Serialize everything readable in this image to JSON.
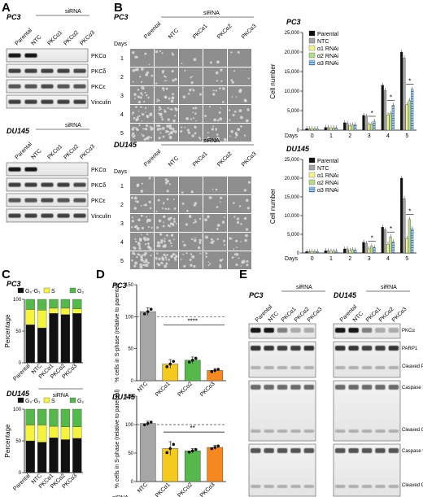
{
  "panel_labels": {
    "A": "A",
    "B": "B",
    "C": "C",
    "D": "D",
    "E": "E"
  },
  "cell_lines": {
    "pc3": "PC3",
    "du145": "DU145"
  },
  "sirna_label": "siRNA",
  "lanes_full": [
    "Parental",
    "NTC",
    "PKCα1",
    "PKCα2",
    "PKCα3"
  ],
  "lanes_b": [
    "Parental",
    "NTC",
    "PKCα1",
    "PKCα2",
    "PKCα3"
  ],
  "blot_labels_a": [
    "PKCα",
    "PKCδ",
    "PKCε",
    "Vinculin"
  ],
  "panel_b": {
    "days_label": "Days",
    "day_rows": [
      "1",
      "2",
      "3",
      "4",
      "5"
    ]
  },
  "panel_e": {
    "labels": [
      "PKCα",
      "PARP1",
      "Cleaved PARP1",
      "Caspase 3",
      "Cleaved Caspase 3",
      "Caspase 9",
      "Cleaved Caspase 9",
      "Vinculin"
    ]
  },
  "chart_data": [
    {
      "id": "B-PC3",
      "type": "bar",
      "title": "PC3",
      "xlabel": "Days",
      "ylabel": "Cell number",
      "categories": [
        "0",
        "1",
        "2",
        "3",
        "4",
        "5"
      ],
      "ylim": [
        0,
        25000
      ],
      "yticks": [
        "0",
        "5,000",
        "10,000",
        "15,000",
        "20,000",
        "25,000"
      ],
      "series": [
        {
          "name": "Parental",
          "color": "#111111",
          "values": [
            400,
            700,
            1900,
            3800,
            11500,
            20000
          ]
        },
        {
          "name": "NTC",
          "color": "#a6a6a6",
          "values": [
            400,
            700,
            1800,
            3600,
            10200,
            18500
          ]
        },
        {
          "name": "α1 RNAi",
          "color": "#f4f48c",
          "values": [
            400,
            600,
            1200,
            1500,
            3900,
            6500
          ]
        },
        {
          "name": "α2 RNAi",
          "color": "#b6de8a",
          "values": [
            400,
            600,
            1300,
            1600,
            4300,
            7600
          ]
        },
        {
          "name": "α3 RNAi",
          "color": "#9cc8ee",
          "values": [
            400,
            600,
            1400,
            2300,
            6400,
            10500
          ]
        }
      ],
      "significance": [
        {
          "day": "3",
          "mark": "*"
        },
        {
          "day": "4",
          "mark": "*"
        },
        {
          "day": "5",
          "mark": "*"
        }
      ],
      "legend": "top-right"
    },
    {
      "id": "B-DU145",
      "type": "bar",
      "title": "DU145",
      "xlabel": "Days",
      "ylabel": "Cell number",
      "categories": [
        "0",
        "1",
        "2",
        "3",
        "4",
        "5"
      ],
      "ylim": [
        0,
        25000
      ],
      "yticks": [
        "0",
        "5,000",
        "10,000",
        "15,000",
        "20,000",
        "25,000"
      ],
      "series": [
        {
          "name": "Parental",
          "color": "#111111",
          "values": [
            400,
            600,
            1100,
            2900,
            6900,
            20000
          ]
        },
        {
          "name": "NTC",
          "color": "#a6a6a6",
          "values": [
            400,
            600,
            1100,
            2600,
            6200,
            14500
          ]
        },
        {
          "name": "α1 RNAi",
          "color": "#f4f48c",
          "values": [
            400,
            500,
            700,
            1100,
            2300,
            3900
          ]
        },
        {
          "name": "α2 RNAi",
          "color": "#b6de8a",
          "values": [
            400,
            500,
            900,
            1800,
            4300,
            9000
          ]
        },
        {
          "name": "α3 RNAi",
          "color": "#9cc8ee",
          "values": [
            400,
            500,
            800,
            1500,
            3000,
            6500
          ]
        }
      ],
      "significance": [
        {
          "day": "3",
          "mark": "*"
        },
        {
          "day": "4",
          "mark": "*"
        },
        {
          "day": "5",
          "mark": "*"
        }
      ],
      "legend": "top-right"
    },
    {
      "id": "C-PC3",
      "type": "bar",
      "title": "PC3",
      "ylabel": "Percentage",
      "xlabel": "siRNA",
      "categories": [
        "Parental",
        "NTC",
        "PKCα1",
        "PKCα2",
        "PKCα3"
      ],
      "ylim": [
        0,
        100
      ],
      "stacked": true,
      "series": [
        {
          "name": "G₀-G₁",
          "color": "#111111",
          "values": [
            60,
            55,
            78,
            76,
            78
          ]
        },
        {
          "name": "S",
          "color": "#f6f33c",
          "values": [
            24,
            28,
            8,
            10,
            7
          ]
        },
        {
          "name": "G₂",
          "color": "#55b84a",
          "values": [
            16,
            17,
            14,
            14,
            15
          ]
        }
      ],
      "legend": "top"
    },
    {
      "id": "C-DU145",
      "type": "bar",
      "title": "DU145",
      "ylabel": "Percentage",
      "xlabel": "siRNA",
      "categories": [
        "Parental",
        "NTC",
        "PKCα1",
        "PKCα2",
        "PKCα3"
      ],
      "ylim": [
        0,
        100
      ],
      "stacked": true,
      "series": [
        {
          "name": "G₀-G₁",
          "color": "#111111",
          "values": [
            50,
            48,
            55,
            52,
            54
          ]
        },
        {
          "name": "S",
          "color": "#f6f33c",
          "values": [
            25,
            27,
            18,
            20,
            18
          ]
        },
        {
          "name": "G₂",
          "color": "#55b84a",
          "values": [
            25,
            25,
            27,
            28,
            28
          ]
        }
      ],
      "legend": "top"
    },
    {
      "id": "D-PC3",
      "type": "bar",
      "title": "PC3",
      "ylabel": "% cells in S-phase (relative to parental)",
      "categories": [
        "NTC",
        "PKCα1",
        "PKCα2",
        "PKCα3"
      ],
      "colors": [
        "#a6a6a6",
        "#f4ca1e",
        "#55b84a",
        "#f5891f"
      ],
      "values": [
        108,
        26,
        32,
        16
      ],
      "errors": [
        6,
        7,
        5,
        3
      ],
      "ylim": [
        0,
        150
      ],
      "yticks": [
        "0",
        "50",
        "100",
        "150"
      ],
      "reference_line": 100,
      "significance": "****"
    },
    {
      "id": "D-DU145",
      "type": "bar",
      "title": "DU145",
      "ylabel": "% cells in S-phase (relative to parental)",
      "xlabel": "siRNA",
      "categories": [
        "NTC",
        "PKCα1",
        "PKCα2",
        "PKCα3"
      ],
      "colors": [
        "#a6a6a6",
        "#f4ca1e",
        "#55b84a",
        "#f5891f"
      ],
      "values": [
        102,
        58,
        54,
        60
      ],
      "errors": [
        4,
        12,
        4,
        4
      ],
      "ylim": [
        0,
        150
      ],
      "yticks": [
        "0",
        "50",
        "100",
        "150"
      ],
      "reference_line": 100,
      "significance": "**"
    }
  ]
}
